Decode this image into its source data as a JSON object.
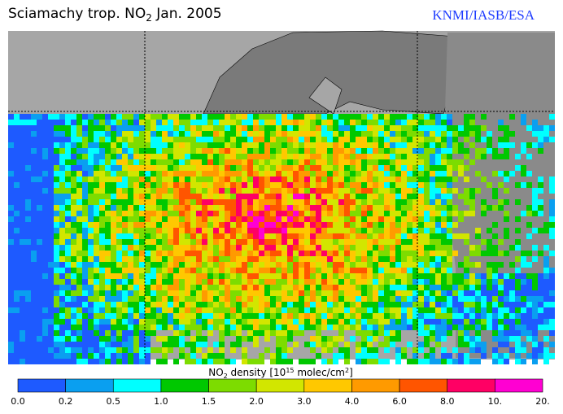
{
  "header": {
    "title": [
      "Sciamachy trop. NO",
      "2",
      "  Jan. 2005"
    ],
    "credit": "KNMI/IASB/ESA"
  },
  "legend": {
    "title": [
      "NO",
      "2",
      " density [10",
      "15",
      " molec/cm",
      "2",
      "]"
    ],
    "labels": [
      "0.0",
      "0.2",
      "0.5",
      "1.0",
      "1.5",
      "2.0",
      "3.0",
      "4.0",
      "6.0",
      "8.0",
      "10.",
      "20."
    ],
    "colors": [
      "#1e5aff",
      "#0a9ff0",
      "#00ffff",
      "#00c800",
      "#7ddc00",
      "#d2e600",
      "#ffc800",
      "#ff9a00",
      "#ff5500",
      "#ff0064",
      "#ff00d2"
    ]
  }
}
